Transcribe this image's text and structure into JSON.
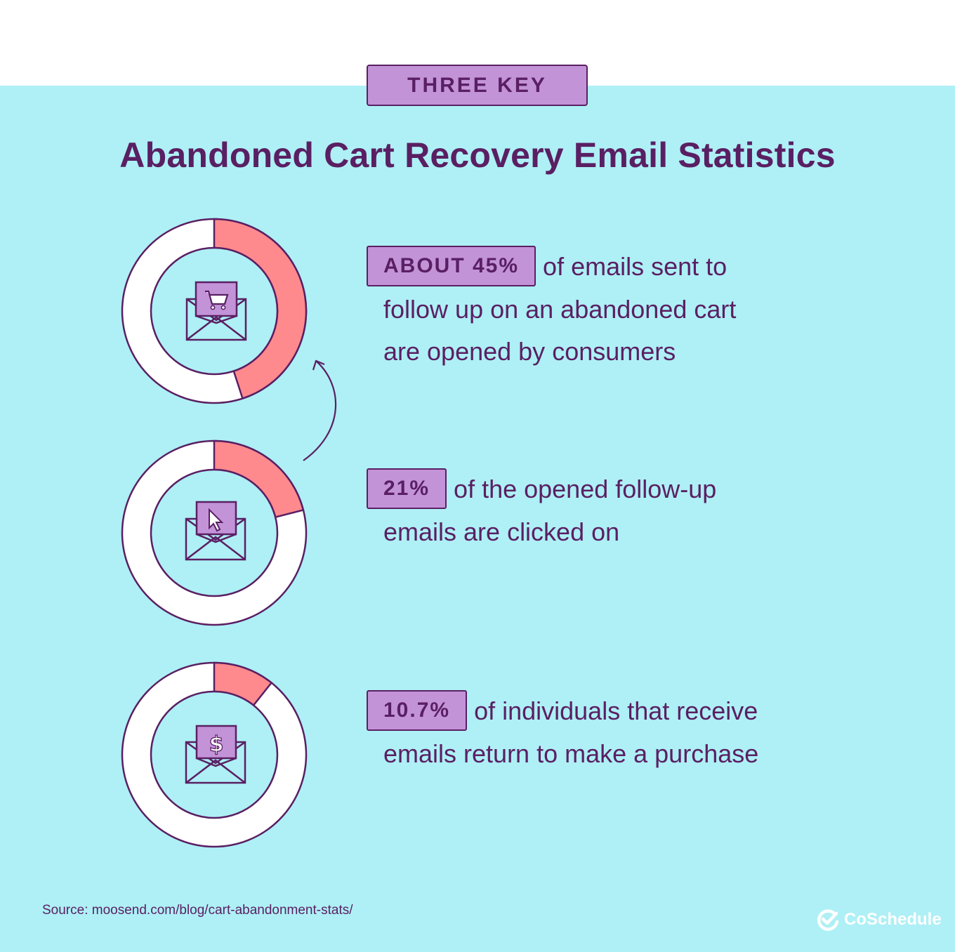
{
  "header": {
    "tag": "THREE KEY",
    "title": "Abandoned Cart Recovery Email Statistics"
  },
  "stats": [
    {
      "badge": "ABOUT 45%",
      "fraction": 0.45,
      "icon": "shopping-cart-icon",
      "lines": [
        "of emails sent to",
        "follow up on an abandoned cart",
        "are opened by consumers"
      ]
    },
    {
      "badge": "21%",
      "fraction": 0.21,
      "icon": "cursor-icon",
      "lines": [
        "of the opened follow-up",
        "emails are clicked on"
      ]
    },
    {
      "badge": "10.7%",
      "fraction": 0.107,
      "icon": "dollar-icon",
      "lines": [
        "of individuals that receive",
        "emails return to make a purchase"
      ]
    }
  ],
  "footer": {
    "source": "Source: moosend.com/blog/cart-abandonment-stats/",
    "brand": "CoSchedule"
  },
  "colors": {
    "background": "#aef0f5",
    "text": "#5a1f63",
    "badge": "#c393d8",
    "accent": "#ff8a8e"
  }
}
